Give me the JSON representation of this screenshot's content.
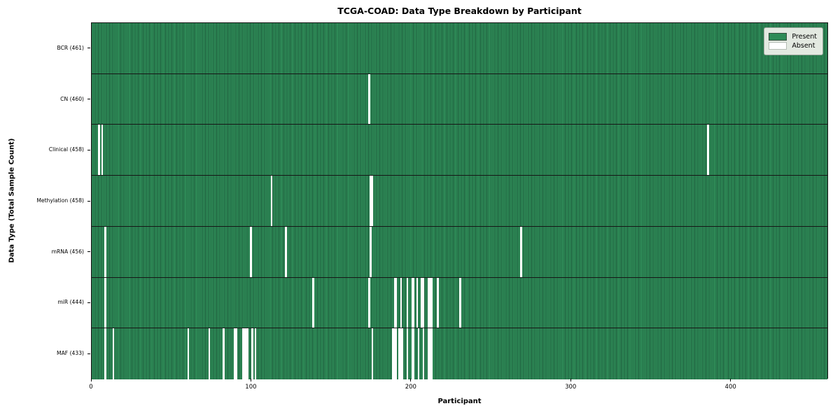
{
  "title": "TCGA-COAD: Data Type Breakdown by Participant",
  "xlabel": "Participant",
  "ylabel": "Data Type (Total Sample Count)",
  "legend": {
    "present_label": "Present",
    "absent_label": "Absent"
  },
  "colors": {
    "present_fill": "#2e8b57",
    "cell_edge": "#1e5c3c",
    "absent_fill": "#ffffff",
    "row_separator": "#161616",
    "legend_bg": "#e3e9e1"
  },
  "chart_data": {
    "type": "heatmap",
    "title": "TCGA-COAD: Data Type Breakdown by Participant",
    "xlabel": "Participant",
    "ylabel": "Data Type (Total Sample Count)",
    "x_range": [
      0,
      461
    ],
    "x_ticks": [
      0,
      100,
      200,
      300,
      400
    ],
    "n_participants": 461,
    "legend": [
      "Present",
      "Absent"
    ],
    "legend_position": "upper right",
    "grid": false,
    "rows": [
      {
        "label": "BCR (461)",
        "data_type": "BCR",
        "present_count": 461,
        "absent_participants": []
      },
      {
        "label": "CN (460)",
        "data_type": "CN",
        "present_count": 460,
        "absent_participants": [
          173
        ]
      },
      {
        "label": "Clinical (458)",
        "data_type": "Clinical",
        "present_count": 458,
        "absent_participants": [
          4,
          6,
          385
        ]
      },
      {
        "label": "Methylation (458)",
        "data_type": "Methylation",
        "present_count": 458,
        "absent_participants": [
          112,
          174,
          175
        ]
      },
      {
        "label": "mRNA (456)",
        "data_type": "mRNA",
        "present_count": 456,
        "absent_participants": [
          8,
          99,
          121,
          174,
          268
        ]
      },
      {
        "label": "miR (444)",
        "data_type": "miR",
        "present_count": 444,
        "absent_participants": [
          8,
          138,
          173,
          189,
          190,
          193,
          197,
          200,
          201,
          203,
          206,
          207,
          210,
          211,
          212,
          216,
          230
        ]
      },
      {
        "label": "MAF (433)",
        "data_type": "MAF",
        "present_count": 433,
        "absent_participants": [
          8,
          13,
          60,
          73,
          82,
          89,
          90,
          94,
          95,
          96,
          97,
          100,
          102,
          175,
          188,
          189,
          190,
          192,
          193,
          194,
          197,
          200,
          201,
          204,
          207,
          210,
          211,
          212
        ]
      }
    ]
  }
}
